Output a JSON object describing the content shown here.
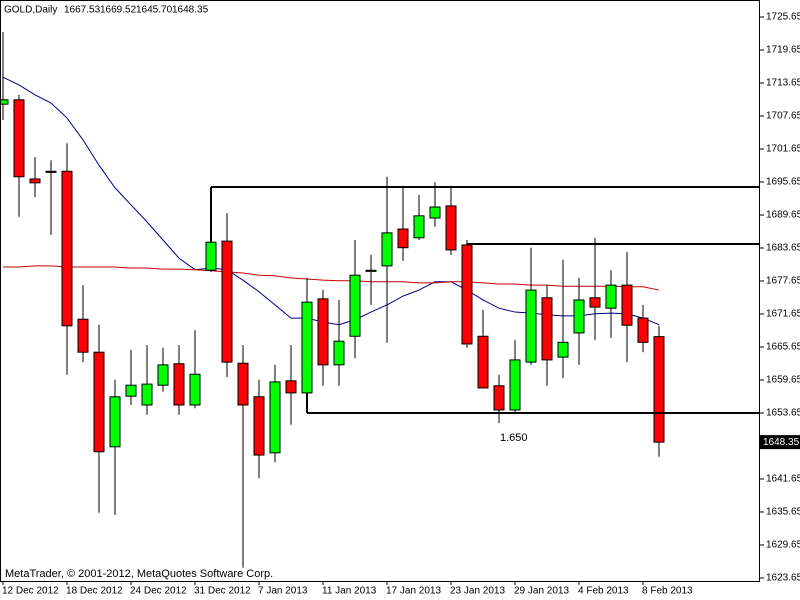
{
  "chart_data": {
    "type": "candlestick",
    "title": "GOLD,Daily",
    "header_labels": [
      "1667.53",
      "1669.52",
      "1645.70",
      "1648.35"
    ],
    "footer": "MetaTrader, © 2001-2012, MetaQuotes Software Corp.",
    "categories": [
      "12 Dec 2012",
      null,
      null,
      null,
      "18 Dec 2012",
      null,
      null,
      null,
      "24 Dec 2012",
      null,
      null,
      null,
      "31 Dec 2012",
      null,
      null,
      null,
      "7 Jan 2013",
      null,
      null,
      null,
      "11 Jan 2013",
      null,
      null,
      null,
      "17 Jan 2013",
      null,
      null,
      null,
      "23 Jan 2013",
      null,
      null,
      null,
      "29 Jan 2013",
      null,
      null,
      null,
      "4 Feb 2013",
      null,
      null,
      null,
      "8 Feb 2013",
      null
    ],
    "open": [
      1709.8,
      1710.6,
      1696.2,
      1697.6,
      1697.6,
      1670.7,
      1664.7,
      1647.5,
      1656.7,
      1655.1,
      1658.7,
      1662.6,
      1655.1,
      1679.6,
      1684.9,
      1662.7,
      1656.6,
      1646.4,
      1659.5,
      1657.3,
      1674.4,
      1662.4,
      1667.6,
      1679.4,
      1680.4,
      1687.1,
      1685.5,
      1689.1,
      1691.3,
      1684.2,
      1667.6,
      1658.6,
      1654.2,
      1662.9,
      1674.6,
      1663.8,
      1668.2,
      1674.6,
      1672.7,
      1676.9,
      1670.9,
      1667.53
    ],
    "high": [
      1722.9,
      1711.5,
      1700.2,
      1699.6,
      1702.7,
      1676.9,
      1669.7,
      1659.7,
      1665.1,
      1666.0,
      1665.5,
      1666.0,
      1668.7,
      1694.6,
      1690.0,
      1666.0,
      1659.7,
      1662.4,
      1666.0,
      1678.2,
      1676.0,
      1674.2,
      1685.1,
      1682.4,
      1696.6,
      1694.7,
      1693.3,
      1695.6,
      1694.6,
      1685.1,
      1672.4,
      1660.6,
      1666.9,
      1683.7,
      1676.9,
      1681.5,
      1678.2,
      1685.5,
      1679.6,
      1682.9,
      1673.3,
      1669.52
    ],
    "low": [
      1706.9,
      1689.3,
      1692.9,
      1686.0,
      1660.6,
      1662.9,
      1635.5,
      1635.1,
      1655.1,
      1653.3,
      1657.5,
      1653.3,
      1654.5,
      1679.3,
      1660.2,
      1625.5,
      1641.8,
      1644.7,
      1651.5,
      1656.0,
      1658.6,
      1658.6,
      1663.6,
      1673.3,
      1666.4,
      1681.3,
      1685.1,
      1687.5,
      1682.4,
      1665.5,
      1658.2,
      1651.8,
      1653.8,
      1662.4,
      1658.6,
      1660.0,
      1662.4,
      1666.9,
      1667.3,
      1662.9,
      1664.7,
      1645.7
    ],
    "close": [
      1710.6,
      1696.6,
      1695.5,
      1697.4,
      1669.5,
      1664.7,
      1646.6,
      1656.6,
      1658.7,
      1658.9,
      1662.4,
      1655.1,
      1660.7,
      1684.7,
      1662.9,
      1655.1,
      1646.0,
      1659.3,
      1657.3,
      1673.8,
      1662.4,
      1666.7,
      1678.7,
      1679.6,
      1686.4,
      1683.7,
      1689.5,
      1691.1,
      1683.3,
      1666.2,
      1658.2,
      1654.2,
      1663.3,
      1676.0,
      1663.3,
      1666.5,
      1674.2,
      1672.9,
      1676.9,
      1669.6,
      1666.5,
      1648.35
    ],
    "up_color": "#00ff00",
    "down_color": "#ff0000",
    "series": [
      {
        "color": "#00008b",
        "values": [
          1714.7,
          1713.3,
          1711.5,
          1710.0,
          1707.3,
          1703.3,
          1698.7,
          1694.6,
          1691.5,
          1688.4,
          1685.1,
          1681.8,
          1679.7,
          1680.0,
          1679.7,
          1677.8,
          1675.7,
          1673.3,
          1670.9,
          1670.9,
          1670.2,
          1669.7,
          1670.6,
          1672.0,
          1673.3,
          1674.9,
          1676.0,
          1677.5,
          1677.5,
          1676.0,
          1674.2,
          1672.7,
          1672.0,
          1671.8,
          1671.5,
          1671.3,
          1671.3,
          1671.7,
          1671.8,
          1671.7,
          1670.9,
          1669.7
        ]
      },
      {
        "color": "#c80000",
        "values": [
          1680.2,
          1680.2,
          1680.4,
          1680.4,
          1680.2,
          1680.2,
          1680.2,
          1680.2,
          1680.0,
          1680.0,
          1679.8,
          1679.8,
          1679.7,
          1679.5,
          1679.3,
          1679.1,
          1678.7,
          1678.6,
          1678.2,
          1678.0,
          1677.8,
          1677.7,
          1677.7,
          1677.5,
          1677.5,
          1677.5,
          1677.3,
          1677.3,
          1677.5,
          1677.5,
          1677.3,
          1677.1,
          1677.1,
          1676.9,
          1676.9,
          1676.7,
          1676.7,
          1676.7,
          1676.7,
          1676.6,
          1676.6,
          1676.0
        ]
      }
    ],
    "levels": [
      1694.74,
      1684.38,
      1653.65
    ],
    "annotations": [
      "1.650"
    ],
    "ylim": [
      1623.1,
      1728.74
    ],
    "yticks": [
      1725.65,
      1719.65,
      1713.65,
      1707.65,
      1701.65,
      1695.65,
      1689.65,
      1683.65,
      1677.65,
      1671.65,
      1665.65,
      1659.65,
      1653.65,
      1647.65,
      1641.65,
      1635.65,
      1629.65,
      1623.65
    ]
  }
}
